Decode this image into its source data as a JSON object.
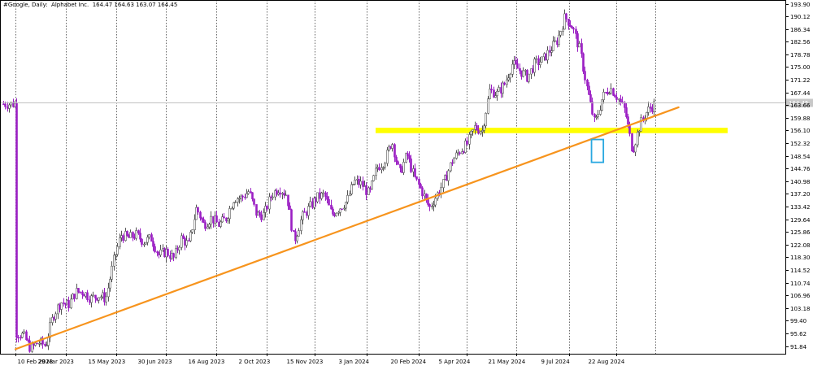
{
  "header": {
    "symbol": "#Google",
    "timeframe": "Daily",
    "instrument": "Alphabet Inc.",
    "ohlc": "164.47 164.63 163.07 164.45"
  },
  "colors": {
    "bull": "#555555",
    "bear": "#9b1fc4",
    "trendline": "#f7941d",
    "support_zone": "#ffff00",
    "highlight_box": "#29a8e0",
    "price_line": "#c0c0c0",
    "grid": "#000000"
  },
  "chart_data": {
    "type": "candlestick",
    "title": "",
    "xlabel": "",
    "ylabel": "",
    "x_tick_labels": [
      "10 Feb 2023",
      "29 Mar 2023",
      "15 May 2023",
      "30 Jun 2023",
      "16 Aug 2023",
      "2 Oct 2023",
      "15 Nov 2023",
      "3 Jan 2024",
      "20 Feb 2024",
      "5 Apr 2024",
      "21 May 2024",
      "9 Jul 2024",
      "22 Aug 2024"
    ],
    "y_tick_labels": [
      "193.90",
      "190.12",
      "186.34",
      "182.56",
      "178.78",
      "175.00",
      "171.22",
      "167.44",
      "163.66",
      "159.88",
      "156.10",
      "152.32",
      "148.54",
      "144.76",
      "140.98",
      "137.20",
      "133.42",
      "129.64",
      "125.86",
      "122.08",
      "118.30",
      "114.52",
      "110.74",
      "106.96",
      "103.18",
      "99.40",
      "95.62",
      "91.84"
    ],
    "y_ticks": [
      193.9,
      190.12,
      186.34,
      182.56,
      178.78,
      175.0,
      171.22,
      167.44,
      163.66,
      159.88,
      156.1,
      152.32,
      148.54,
      144.76,
      140.98,
      137.2,
      133.42,
      129.64,
      125.86,
      122.08,
      118.3,
      114.52,
      110.74,
      106.96,
      103.18,
      99.4,
      95.62,
      91.84
    ],
    "ylim": [
      90.7,
      195.0
    ],
    "grid": true,
    "current_price": 164.45,
    "current_price_label": "164.45",
    "support_zone": [
      155.3,
      156.9
    ],
    "trendline": {
      "start": [
        "10 Feb 2023",
        90.9
      ],
      "end": [
        "19 Oct 2024",
        163.0
      ]
    },
    "highlight_box": {
      "x_range": [
        "2 Aug 2024",
        "7 Aug 2024"
      ],
      "y_range": [
        146.6,
        153.4
      ]
    },
    "price_path": [
      [
        "10 Feb 2023",
        96
      ],
      [
        "17 Feb 2023",
        95
      ],
      [
        "24 Feb 2023",
        91
      ],
      [
        "3 Mar 2023",
        93
      ],
      [
        "10 Mar 2023",
        92
      ],
      [
        "17 Mar 2023",
        101
      ],
      [
        "24 Mar 2023",
        105
      ],
      [
        "31 Mar 2023",
        104
      ],
      [
        "7 Apr 2023",
        108
      ],
      [
        "14 Apr 2023",
        108
      ],
      [
        "21 Apr 2023",
        106
      ],
      [
        "28 Apr 2023",
        107
      ],
      [
        "5 May 2023",
        106
      ],
      [
        "12 May 2023",
        117
      ],
      [
        "19 May 2023",
        125
      ],
      [
        "26 May 2023",
        124
      ],
      [
        "2 Jun 2023",
        125
      ],
      [
        "9 Jun 2023",
        123
      ],
      [
        "16 Jun 2023",
        124
      ],
      [
        "23 Jun 2023",
        119
      ],
      [
        "30 Jun 2023",
        120
      ],
      [
        "7 Jul 2023",
        118
      ],
      [
        "14 Jul 2023",
        124
      ],
      [
        "21 Jul 2023",
        122
      ],
      [
        "28 Jul 2023",
        133
      ],
      [
        "4 Aug 2023",
        128
      ],
      [
        "11 Aug 2023",
        130
      ],
      [
        "18 Aug 2023",
        128
      ],
      [
        "25 Aug 2023",
        130
      ],
      [
        "1 Sep 2023",
        136
      ],
      [
        "8 Sep 2023",
        136
      ],
      [
        "15 Sep 2023",
        138
      ],
      [
        "22 Sep 2023",
        131
      ],
      [
        "29 Sep 2023",
        131
      ],
      [
        "6 Oct 2023",
        137
      ],
      [
        "13 Oct 2023",
        139
      ],
      [
        "20 Oct 2023",
        137
      ],
      [
        "27 Oct 2023",
        123
      ],
      [
        "3 Nov 2023",
        130
      ],
      [
        "10 Nov 2023",
        133
      ],
      [
        "17 Nov 2023",
        136
      ],
      [
        "24 Nov 2023",
        137
      ],
      [
        "1 Dec 2023",
        131
      ],
      [
        "8 Dec 2023",
        133
      ],
      [
        "15 Dec 2023",
        135
      ],
      [
        "22 Dec 2023",
        141
      ],
      [
        "29 Dec 2023",
        140
      ],
      [
        "5 Jan 2024",
        137
      ],
      [
        "12 Jan 2024",
        145
      ],
      [
        "19 Jan 2024",
        147
      ],
      [
        "26 Jan 2024",
        153
      ],
      [
        "2 Feb 2024",
        143
      ],
      [
        "9 Feb 2024",
        149
      ],
      [
        "16 Feb 2024",
        142
      ],
      [
        "23 Feb 2024",
        138
      ],
      [
        "1 Mar 2024",
        133
      ],
      [
        "8 Mar 2024",
        137
      ],
      [
        "15 Mar 2024",
        141
      ],
      [
        "22 Mar 2024",
        147
      ],
      [
        "29 Mar 2024",
        150
      ],
      [
        "5 Apr 2024",
        152
      ],
      [
        "12 Apr 2024",
        157
      ],
      [
        "19 Apr 2024",
        156
      ],
      [
        "26 Apr 2024",
        168
      ],
      [
        "3 May 2024",
        167
      ],
      [
        "10 May 2024",
        170
      ],
      [
        "17 May 2024",
        176
      ],
      [
        "24 May 2024",
        174
      ],
      [
        "31 May 2024",
        172
      ],
      [
        "7 Jun 2024",
        176
      ],
      [
        "14 Jun 2024",
        177
      ],
      [
        "21 Jun 2024",
        180
      ],
      [
        "28 Jun 2024",
        183
      ],
      [
        "5 Jul 2024",
        190
      ],
      [
        "12 Jul 2024",
        187
      ],
      [
        "19 Jul 2024",
        180
      ],
      [
        "26 Jul 2024",
        168
      ],
      [
        "2 Aug 2024",
        158
      ],
      [
        "9 Aug 2024",
        166
      ],
      [
        "16 Aug 2024",
        169
      ],
      [
        "23 Aug 2024",
        166
      ],
      [
        "30 Aug 2024",
        162
      ],
      [
        "6 Sep 2024",
        150
      ],
      [
        "13 Sep 2024",
        158
      ],
      [
        "20 Sep 2024",
        162
      ],
      [
        "27 Sep 2024",
        164
      ]
    ]
  }
}
